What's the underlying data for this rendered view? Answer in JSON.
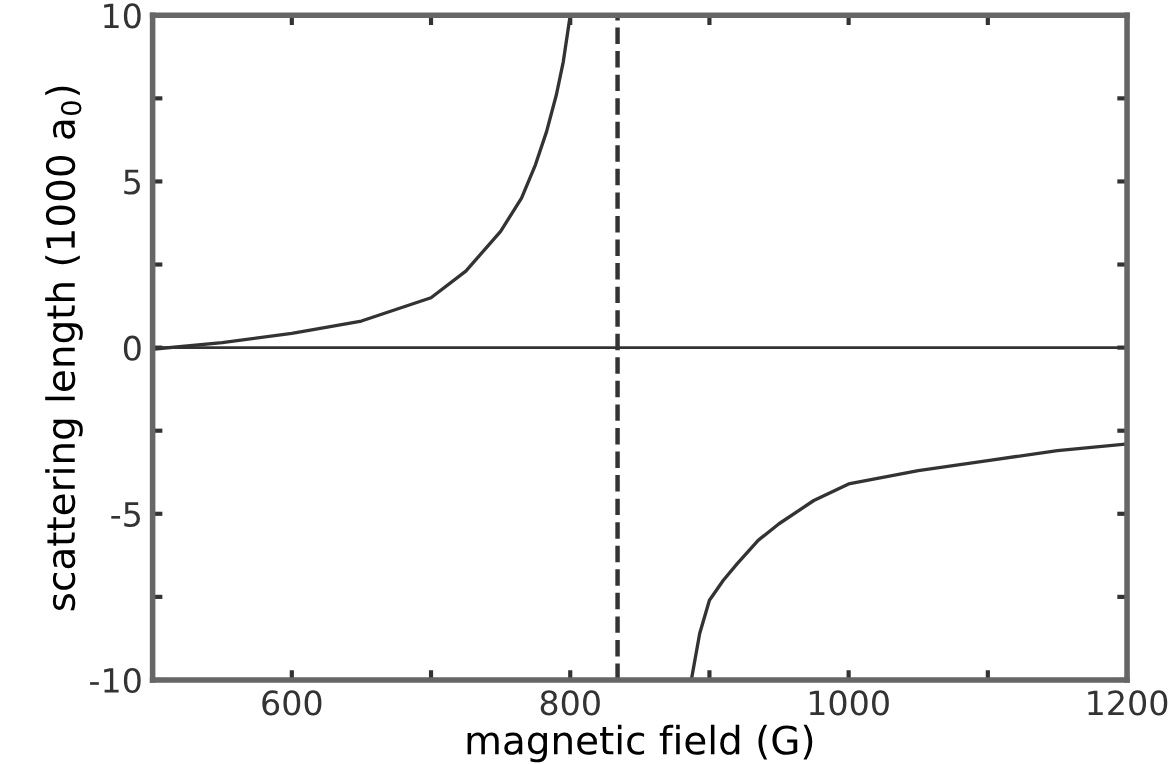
{
  "chart_data": {
    "type": "line",
    "xlabel": "magnetic field (G)",
    "ylabel": "scattering length (1000 a$_{0}$)",
    "series": [
      {
        "color": "#333333",
        "x": [
          500,
          550,
          600,
          650,
          700,
          725,
          750,
          765,
          775,
          783,
          790,
          795,
          800
        ],
        "values": [
          -0.05,
          0.15,
          0.43,
          0.8,
          1.5,
          2.3,
          3.5,
          4.5,
          5.5,
          6.5,
          7.6,
          8.6,
          10
        ]
      },
      {
        "color": "#333333",
        "x": [
          887,
          893,
          900,
          910,
          920,
          935,
          950,
          975,
          1000,
          1050,
          1100,
          1150,
          1200
        ],
        "values": [
          -10,
          -8.6,
          -7.6,
          -7.0,
          -6.5,
          -5.8,
          -5.3,
          -4.6,
          -4.1,
          -3.7,
          -3.4,
          -3.1,
          -2.9
        ]
      }
    ],
    "xlim": [
      500,
      1200
    ],
    "ylim": [
      -10,
      10
    ],
    "xticks": [
      600,
      {
        "value": 700,
        "label": null
      },
      800,
      {
        "value": 900,
        "label": null
      },
      1000,
      {
        "value": 1100,
        "label": null
      },
      1200
    ],
    "yticks": [
      -10,
      {
        "value": -7.5,
        "label": null
      },
      -5,
      {
        "value": -2.5,
        "label": null
      },
      0,
      {
        "value": 2.5,
        "label": null
      },
      5,
      {
        "value": 7.5,
        "label": null
      },
      10
    ],
    "ref_lines": [
      {
        "axis": "y",
        "value": 0,
        "color": "#333333",
        "line_style": "solid"
      },
      {
        "axis": "x",
        "value": 834,
        "color": "#333333",
        "line_style": "dashed"
      }
    ],
    "grid": false,
    "legend": false,
    "marker": "none",
    "line_style": "solid"
  }
}
